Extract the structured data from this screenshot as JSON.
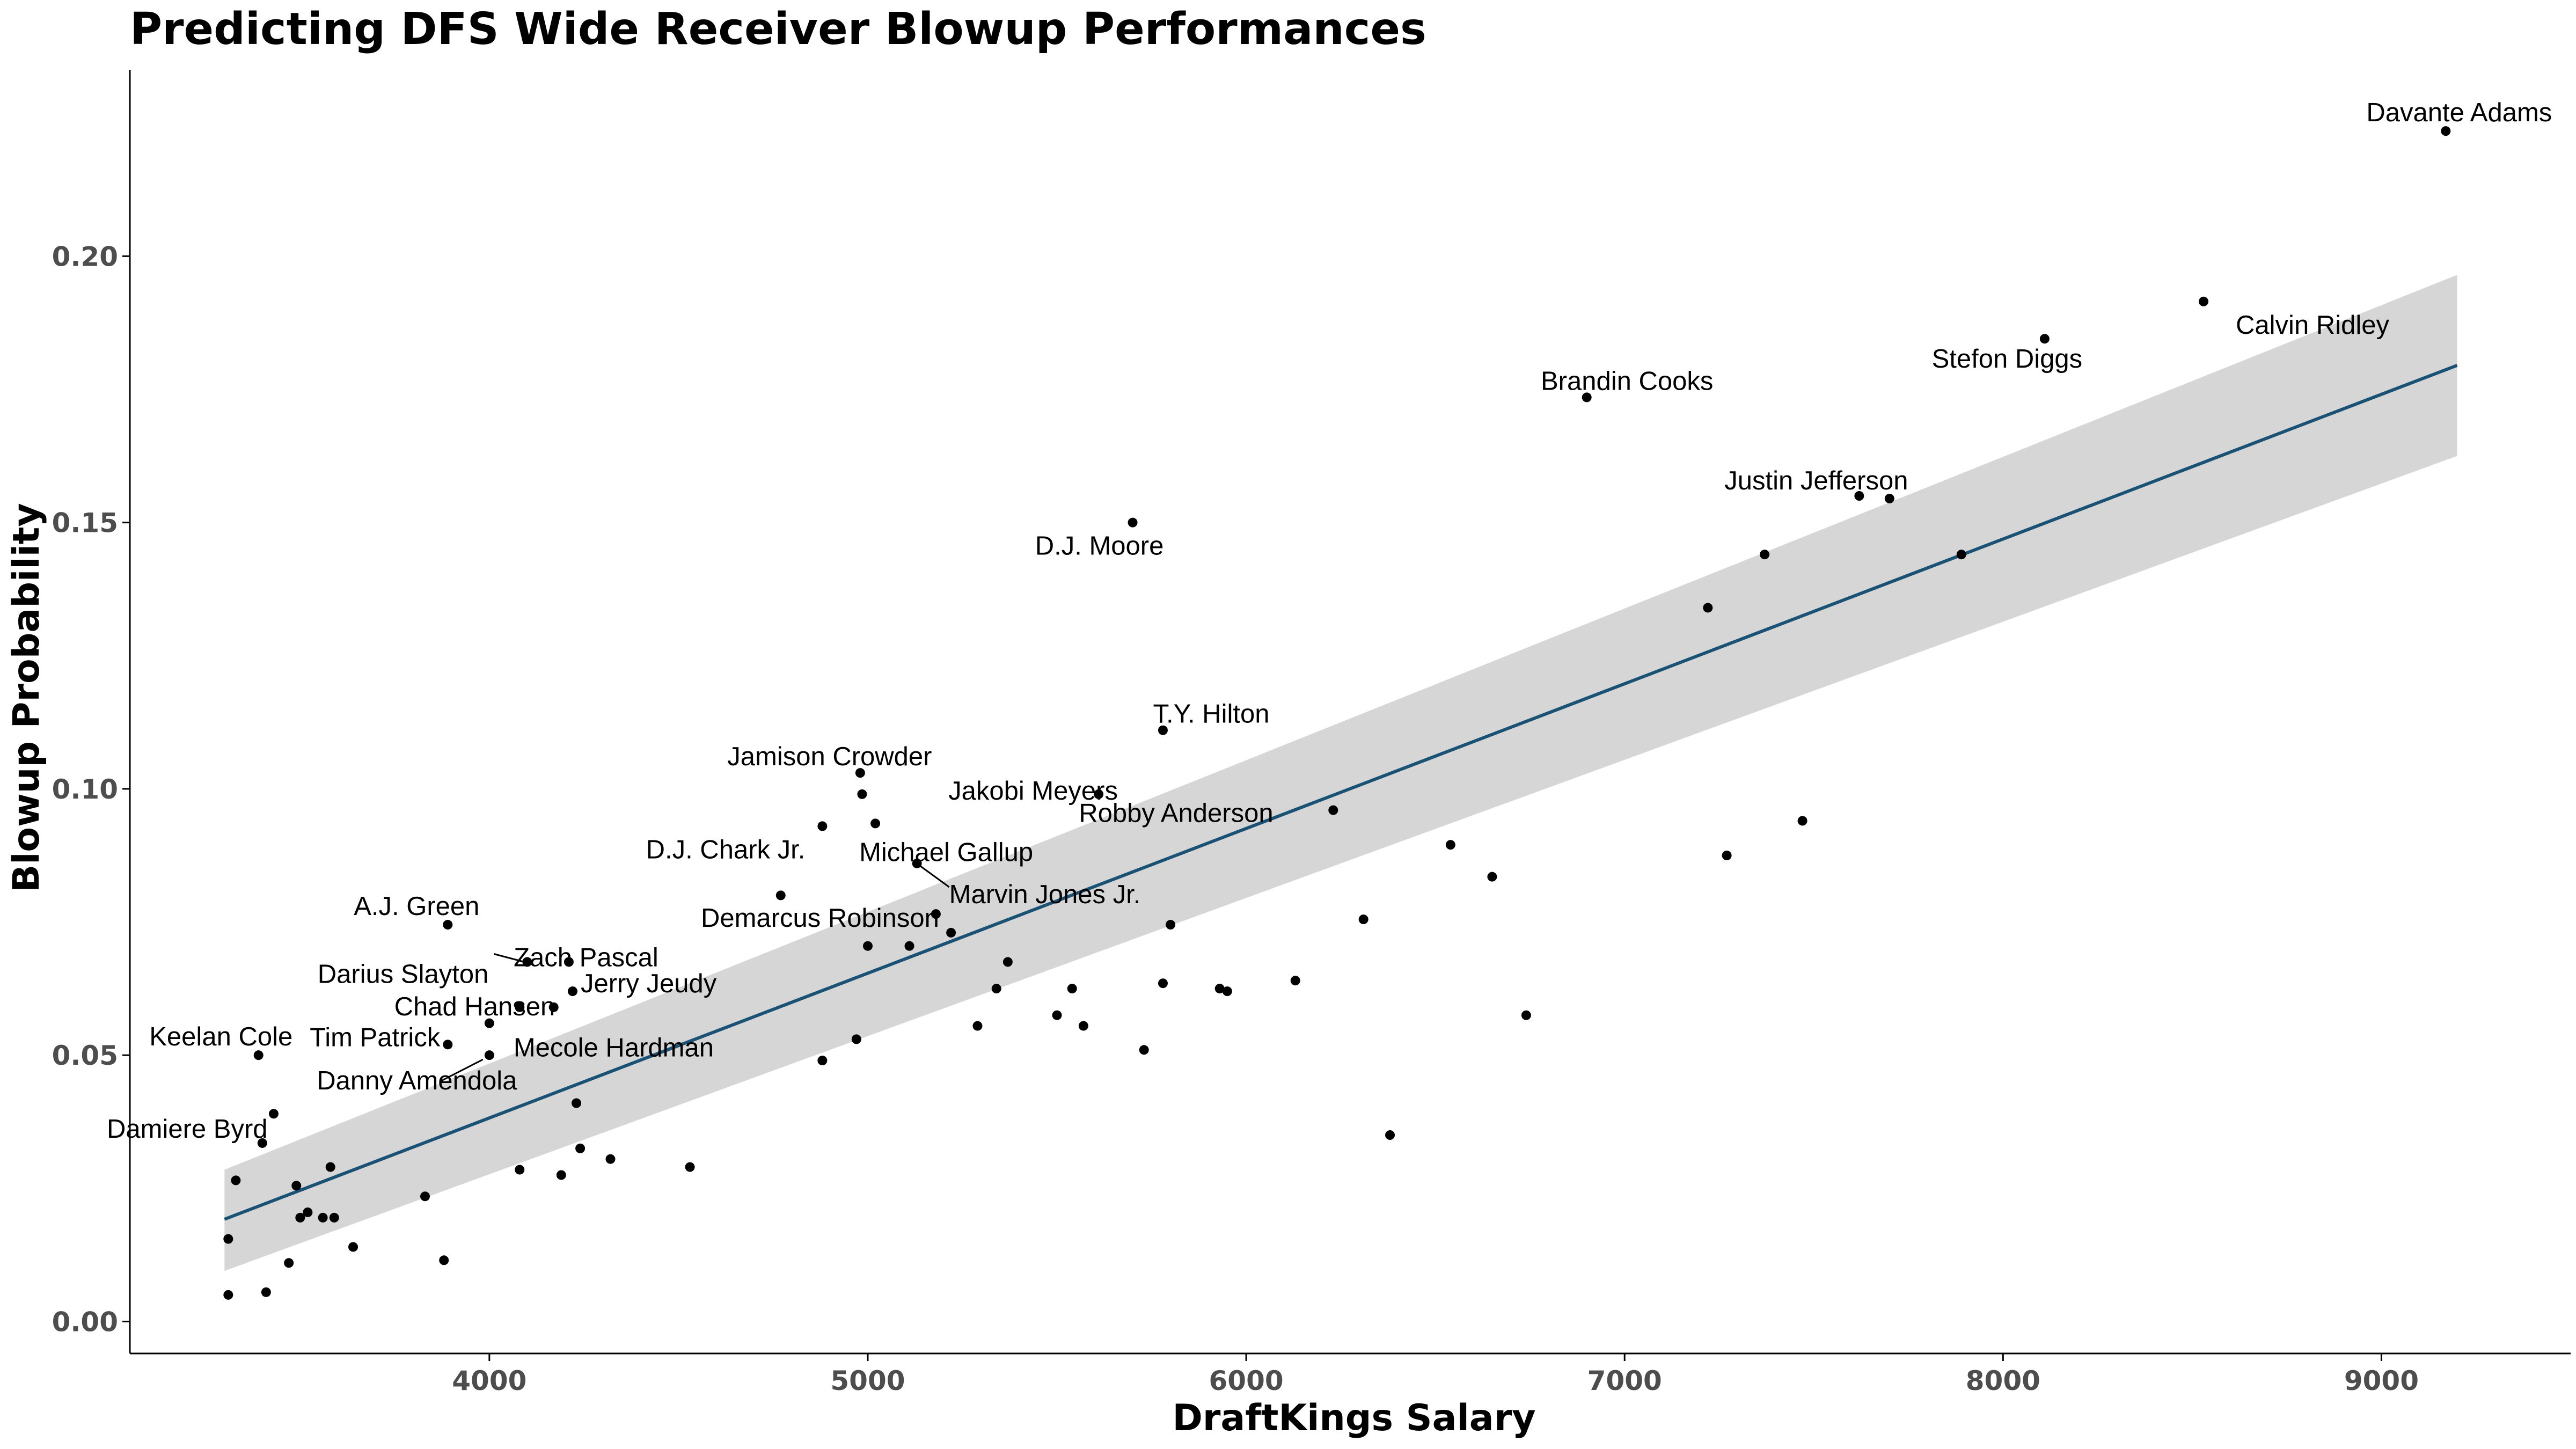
{
  "chart_data": {
    "type": "scatter",
    "title": "Predicting DFS Wide Receiver Blowup Performances",
    "xlabel": "DraftKings Salary",
    "ylabel": "Blowup Probability",
    "xlim": [
      3050,
      9500
    ],
    "ylim": [
      -0.006,
      0.235
    ],
    "x_ticks": [
      4000,
      5000,
      6000,
      7000,
      8000,
      9000
    ],
    "y_ticks": [
      0.0,
      0.05,
      0.1,
      0.15,
      0.2
    ],
    "x_tick_labels": [
      "4000",
      "5000",
      "6000",
      "7000",
      "8000",
      "9000"
    ],
    "y_tick_labels": [
      "0.00",
      "0.05",
      "0.10",
      "0.15",
      "0.20"
    ],
    "grid": false,
    "legend": "none",
    "colors": {
      "point": "#000000",
      "line": "#1a5276",
      "ribbon": "#d6d6d6",
      "axis": "#000000",
      "tick_text": "#4d4d4d"
    },
    "regression": {
      "x_start": 3300,
      "y_start": 0.0192,
      "x_end": 9200,
      "y_end": 0.1795,
      "ci_start": [
        0.0095,
        0.0285
      ],
      "ci_end": [
        0.1625,
        0.1965
      ]
    },
    "points": [
      {
        "x": 9170,
        "y": 0.2235,
        "label": "Davante Adams"
      },
      {
        "x": 8530,
        "y": 0.1915,
        "label": "Calvin Ridley"
      },
      {
        "x": 8110,
        "y": 0.1845,
        "label": "Stefon Diggs"
      },
      {
        "x": 6900,
        "y": 0.1735,
        "label": "Brandin Cooks"
      },
      {
        "x": 7620,
        "y": 0.155,
        "label": "Justin Jefferson"
      },
      {
        "x": 7700,
        "y": 0.1545
      },
      {
        "x": 5700,
        "y": 0.15,
        "label": "D.J. Moore"
      },
      {
        "x": 7370,
        "y": 0.144
      },
      {
        "x": 7890,
        "y": 0.144
      },
      {
        "x": 7220,
        "y": 0.134
      },
      {
        "x": 5780,
        "y": 0.111,
        "label": "T.Y. Hilton"
      },
      {
        "x": 4980,
        "y": 0.103,
        "label": "Jamison Crowder"
      },
      {
        "x": 4985,
        "y": 0.099
      },
      {
        "x": 5610,
        "y": 0.099,
        "label": "Jakobi Meyers"
      },
      {
        "x": 6230,
        "y": 0.096,
        "label": "Robby Anderson"
      },
      {
        "x": 7470,
        "y": 0.094
      },
      {
        "x": 5020,
        "y": 0.0935,
        "label": "Michael Gallup"
      },
      {
        "x": 4880,
        "y": 0.093,
        "label": "D.J. Chark Jr."
      },
      {
        "x": 6540,
        "y": 0.0895
      },
      {
        "x": 7270,
        "y": 0.0875
      },
      {
        "x": 5130,
        "y": 0.086,
        "label": "Marvin Jones Jr."
      },
      {
        "x": 6650,
        "y": 0.0835
      },
      {
        "x": 4770,
        "y": 0.08
      },
      {
        "x": 5180,
        "y": 0.0765,
        "label": "Demarcus Robinson"
      },
      {
        "x": 6310,
        "y": 0.0755
      },
      {
        "x": 3890,
        "y": 0.0745,
        "label": "A.J. Green"
      },
      {
        "x": 5800,
        "y": 0.0745
      },
      {
        "x": 5220,
        "y": 0.073
      },
      {
        "x": 5000,
        "y": 0.0705
      },
      {
        "x": 5110,
        "y": 0.0705
      },
      {
        "x": 4100,
        "y": 0.0675,
        "label": "Darius Slayton"
      },
      {
        "x": 4210,
        "y": 0.0675,
        "label": "Zach Pascal"
      },
      {
        "x": 5370,
        "y": 0.0675
      },
      {
        "x": 6130,
        "y": 0.064
      },
      {
        "x": 5780,
        "y": 0.0635
      },
      {
        "x": 5340,
        "y": 0.0625
      },
      {
        "x": 5540,
        "y": 0.0625
      },
      {
        "x": 5930,
        "y": 0.0625
      },
      {
        "x": 5950,
        "y": 0.062
      },
      {
        "x": 4220,
        "y": 0.062,
        "label": "Jerry Jeudy"
      },
      {
        "x": 4080,
        "y": 0.059,
        "label": "Chad Hansen"
      },
      {
        "x": 4170,
        "y": 0.059
      },
      {
        "x": 5500,
        "y": 0.0575
      },
      {
        "x": 6740,
        "y": 0.0575
      },
      {
        "x": 4000,
        "y": 0.056,
        "label": "Mecole Hardman"
      },
      {
        "x": 5290,
        "y": 0.0555
      },
      {
        "x": 5570,
        "y": 0.0555
      },
      {
        "x": 4970,
        "y": 0.053
      },
      {
        "x": 3890,
        "y": 0.052,
        "label": "Tim Patrick"
      },
      {
        "x": 3390,
        "y": 0.05,
        "label": "Keelan Cole"
      },
      {
        "x": 4000,
        "y": 0.05,
        "label": "Danny Amendola"
      },
      {
        "x": 5730,
        "y": 0.051
      },
      {
        "x": 4880,
        "y": 0.049
      },
      {
        "x": 4230,
        "y": 0.041
      },
      {
        "x": 3430,
        "y": 0.039
      },
      {
        "x": 6380,
        "y": 0.035
      },
      {
        "x": 3400,
        "y": 0.0335,
        "label": "Damiere Byrd"
      },
      {
        "x": 4240,
        "y": 0.0325
      },
      {
        "x": 4320,
        "y": 0.0305
      },
      {
        "x": 3580,
        "y": 0.029
      },
      {
        "x": 4080,
        "y": 0.0285
      },
      {
        "x": 4530,
        "y": 0.029
      },
      {
        "x": 4190,
        "y": 0.0275
      },
      {
        "x": 3330,
        "y": 0.0265
      },
      {
        "x": 3490,
        "y": 0.0255
      },
      {
        "x": 3830,
        "y": 0.0235
      },
      {
        "x": 3520,
        "y": 0.0205
      },
      {
        "x": 3500,
        "y": 0.0195
      },
      {
        "x": 3560,
        "y": 0.0195
      },
      {
        "x": 3590,
        "y": 0.0195
      },
      {
        "x": 3310,
        "y": 0.0155
      },
      {
        "x": 3640,
        "y": 0.014
      },
      {
        "x": 3880,
        "y": 0.0115
      },
      {
        "x": 3470,
        "y": 0.011
      },
      {
        "x": 3410,
        "y": 0.0055
      },
      {
        "x": 3310,
        "y": 0.005
      }
    ]
  }
}
